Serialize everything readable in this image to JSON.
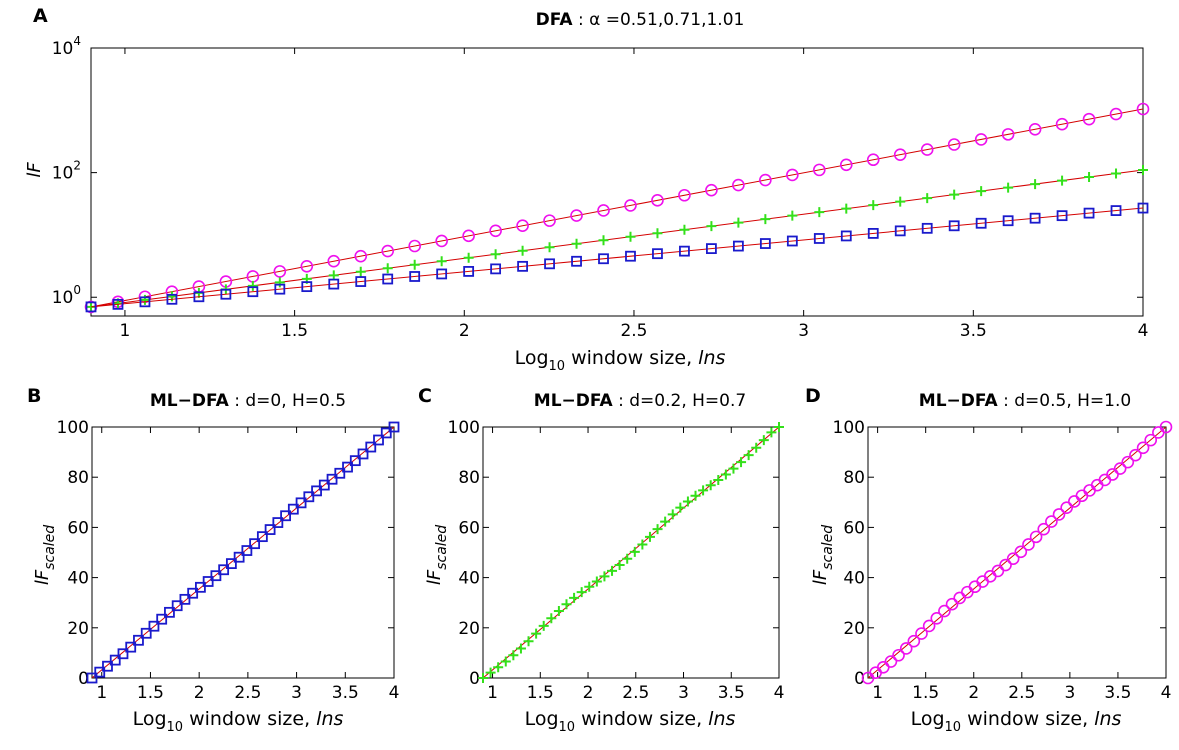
{
  "colors": {
    "blue": "#1a1acc",
    "green": "#33e01a",
    "magenta": "#ee11ee",
    "fit": "#d40000",
    "axis": "#000000"
  },
  "panels": {
    "A": {
      "letter": "A",
      "title_bold": "DFA",
      "title_rest": " : α =0.51,0.71,1.01",
      "ylabel": "lF",
      "xlabel_pre": "Log",
      "xlabel_sub": "10",
      "xlabel_post": " window size, ",
      "xlabel_it": "lns"
    },
    "B": {
      "letter": "B",
      "title_bold": "ML−DFA",
      "title_rest": " : d=0, H=0.5",
      "ylabel_main": "lF",
      "ylabel_sub": "scaled",
      "xlabel_pre": "Log",
      "xlabel_sub": "10",
      "xlabel_post": " window size, ",
      "xlabel_it": "lns"
    },
    "C": {
      "letter": "C",
      "title_bold": "ML−DFA",
      "title_rest": " : d=0.2, H=0.7",
      "ylabel_main": "lF",
      "ylabel_sub": "scaled",
      "xlabel_pre": "Log",
      "xlabel_sub": "10",
      "xlabel_post": " window size, ",
      "xlabel_it": "lns"
    },
    "D": {
      "letter": "D",
      "title_bold": "ML−DFA",
      "title_rest": " : d=0.5, H=1.0",
      "ylabel_main": "lF",
      "ylabel_sub": "scaled",
      "xlabel_pre": "Log",
      "xlabel_sub": "10",
      "xlabel_post": " window size, ",
      "xlabel_it": "lns"
    }
  },
  "chart_data": [
    {
      "panel": "A",
      "type": "scatter",
      "title": "DFA : α =0.51,0.71,1.01",
      "xlabel": "Log10 window size, lns",
      "ylabel": "lF",
      "xlim": [
        0.9,
        4
      ],
      "ylim": [
        0.5,
        10000
      ],
      "yscale": "log",
      "xticks": [
        1,
        1.5,
        2,
        2.5,
        3,
        3.5,
        4
      ],
      "xtick_labels": [
        "1",
        "1.5",
        "2",
        "2.5",
        "3",
        "3.5",
        "4"
      ],
      "yticks": [
        1,
        100,
        10000
      ],
      "ytick_labels": [
        "10^0",
        "10^2",
        "10^4"
      ],
      "series": [
        {
          "color": "magenta",
          "marker": "circle",
          "x_start": 0.9,
          "x_end": 4,
          "points": 40,
          "y_start": 0.7,
          "y_end": 1050,
          "fit": true
        },
        {
          "color": "green",
          "marker": "plus",
          "x_start": 0.9,
          "x_end": 4,
          "points": 40,
          "y_start": 0.7,
          "y_end": 110,
          "fit": true
        },
        {
          "color": "blue",
          "marker": "square",
          "x_start": 0.9,
          "x_end": 4,
          "points": 40,
          "y_start": 0.7,
          "y_end": 27,
          "fit": true
        }
      ]
    },
    {
      "panel": "B",
      "type": "scatter",
      "title": "ML−DFA : d=0, H=0.5",
      "xlabel": "Log10 window size, lns",
      "ylabel": "lF scaled",
      "xlim": [
        0.9,
        4
      ],
      "ylim": [
        0,
        100
      ],
      "xticks": [
        1,
        1.5,
        2,
        2.5,
        3,
        3.5,
        4
      ],
      "xtick_labels": [
        "1",
        "1.5",
        "2",
        "2.5",
        "3",
        "3.5",
        "4"
      ],
      "yticks": [
        0,
        20,
        40,
        60,
        80,
        100
      ],
      "ytick_labels": [
        "0",
        "20",
        "40",
        "60",
        "80",
        "100"
      ],
      "series": [
        {
          "color": "blue",
          "marker": "square",
          "x_start": 0.9,
          "x_end": 4,
          "points": 40,
          "y_start": 0,
          "y_end": 100,
          "fit": true
        }
      ]
    },
    {
      "panel": "C",
      "type": "scatter",
      "title": "ML−DFA : d=0.2, H=0.7",
      "xlabel": "Log10 window size, lns",
      "ylabel": "lF scaled",
      "xlim": [
        0.9,
        4
      ],
      "ylim": [
        0,
        100
      ],
      "xticks": [
        1,
        1.5,
        2,
        2.5,
        3,
        3.5,
        4
      ],
      "xtick_labels": [
        "1",
        "1.5",
        "2",
        "2.5",
        "3",
        "3.5",
        "4"
      ],
      "yticks": [
        0,
        20,
        40,
        60,
        80,
        100
      ],
      "ytick_labels": [
        "0",
        "20",
        "40",
        "60",
        "80",
        "100"
      ],
      "series": [
        {
          "color": "green",
          "marker": "plus",
          "x_start": 0.9,
          "x_end": 4,
          "points": 40,
          "y_start": 0,
          "y_end": 100,
          "fit": true
        }
      ]
    },
    {
      "panel": "D",
      "type": "scatter",
      "title": "ML−DFA : d=0.5, H=1.0",
      "xlabel": "Log10 window size, lns",
      "ylabel": "lF scaled",
      "xlim": [
        0.9,
        4
      ],
      "ylim": [
        0,
        100
      ],
      "xticks": [
        1,
        1.5,
        2,
        2.5,
        3,
        3.5,
        4
      ],
      "xtick_labels": [
        "1",
        "1.5",
        "2",
        "2.5",
        "3",
        "3.5",
        "4"
      ],
      "yticks": [
        0,
        20,
        40,
        60,
        80,
        100
      ],
      "ytick_labels": [
        "0",
        "20",
        "40",
        "60",
        "80",
        "100"
      ],
      "series": [
        {
          "color": "magenta",
          "marker": "circle",
          "x_start": 0.9,
          "x_end": 4,
          "points": 40,
          "y_start": 0,
          "y_end": 100,
          "fit": true
        }
      ]
    }
  ]
}
